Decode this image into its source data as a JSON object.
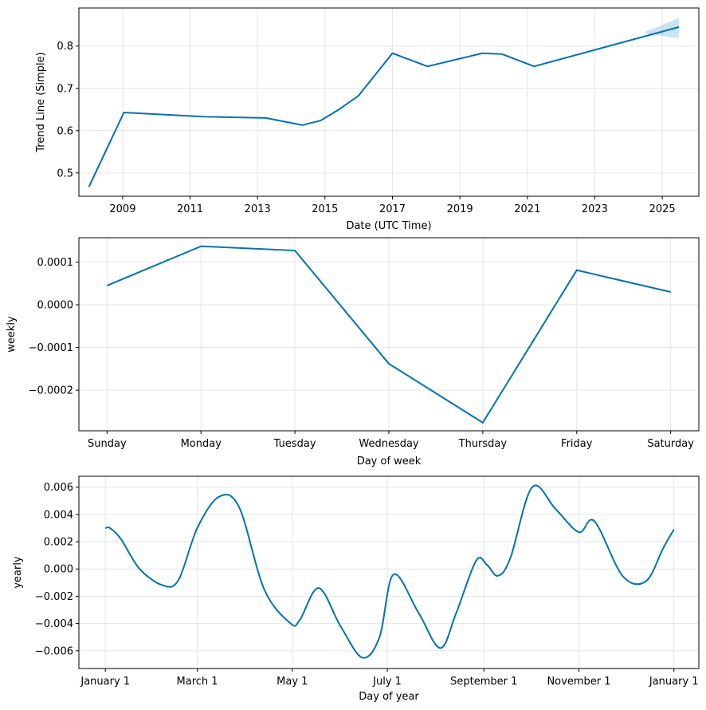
{
  "chart_data": [
    {
      "type": "line",
      "xlabel": "Date (UTC Time)",
      "ylabel": "Trend Line (Simple)",
      "x_is_date": true,
      "xticks": [
        "2009",
        "2011",
        "2013",
        "2015",
        "2017",
        "2019",
        "2021",
        "2023",
        "2025"
      ],
      "xlim": [
        "2007-09-15",
        "2026-02-01"
      ],
      "ylim": [
        0.445,
        0.89
      ],
      "yticks": [
        0.5,
        0.6,
        0.7,
        0.8
      ],
      "ytick_labels": [
        "0.5",
        "0.6",
        "0.7",
        "0.8"
      ],
      "grid": true,
      "x": [
        "2008-01-01",
        "2009-01-15",
        "2011-06-01",
        "2013-04-01",
        "2014-05-01",
        "2014-11-15",
        "2015-06-01",
        "2016-01-01",
        "2017-01-01",
        "2018-01-15",
        "2019-09-01",
        "2020-04-01",
        "2021-03-15",
        "2025-07-01"
      ],
      "y": [
        0.467,
        0.643,
        0.633,
        0.63,
        0.613,
        0.624,
        0.65,
        0.683,
        0.783,
        0.752,
        0.783,
        0.781,
        0.752,
        0.845
      ],
      "uncertainty": {
        "x": [
          "2024-07-01",
          "2025-07-01"
        ],
        "lower": [
          0.83,
          0.818
        ],
        "upper": [
          0.834,
          0.866
        ]
      }
    },
    {
      "type": "line",
      "xlabel": "Day of week",
      "ylabel": "weekly",
      "categories": [
        "Sunday",
        "Monday",
        "Tuesday",
        "Wednesday",
        "Thursday",
        "Friday",
        "Saturday"
      ],
      "values": [
        4.5e-05,
        0.000137,
        0.000127,
        -0.000138,
        -0.000276,
        8.1e-05,
        3e-05
      ],
      "ylim": [
        -0.000295,
        0.000157
      ],
      "yticks": [
        0.0001,
        0.0,
        -0.0001,
        -0.0002
      ],
      "ytick_labels": [
        "0.0001",
        "0.0000",
        "−0.0001",
        "−0.0002"
      ],
      "grid": true
    },
    {
      "type": "line",
      "xlabel": "Day of year",
      "ylabel": "yearly",
      "xticks": [
        "January 1",
        "March 1",
        "May 1",
        "July 1",
        "September 1",
        "November 1",
        "January 1"
      ],
      "xtick_days": [
        0,
        59,
        120,
        181,
        243,
        304,
        365
      ],
      "xlim": [
        -17,
        381
      ],
      "ylim": [
        -0.0073,
        0.0068
      ],
      "yticks": [
        0.006,
        0.004,
        0.002,
        0.0,
        -0.002,
        -0.004,
        -0.006
      ],
      "ytick_labels": [
        "0.006",
        "0.004",
        "0.002",
        "0.000",
        "−0.002",
        "−0.004",
        "−0.006"
      ],
      "grid": true,
      "x": [
        0,
        3,
        10,
        22,
        37,
        47,
        59,
        73,
        86,
        102,
        119,
        125,
        137,
        151,
        165,
        176,
        185,
        201,
        215,
        225,
        238,
        245,
        252,
        260,
        274,
        289,
        304,
        314,
        332,
        347,
        358,
        365
      ],
      "y": [
        0.003,
        0.003,
        0.0022,
        0.0,
        -0.0012,
        -0.0008,
        0.003,
        0.0053,
        0.0045,
        -0.0015,
        -0.004,
        -0.0037,
        -0.0014,
        -0.0042,
        -0.0065,
        -0.005,
        -0.0004,
        -0.0032,
        -0.0058,
        -0.0033,
        0.0006,
        0.0003,
        -0.0005,
        0.0008,
        0.006,
        0.0044,
        0.0027,
        0.0035,
        -0.0005,
        -0.0009,
        0.0015,
        0.0029
      ]
    }
  ]
}
